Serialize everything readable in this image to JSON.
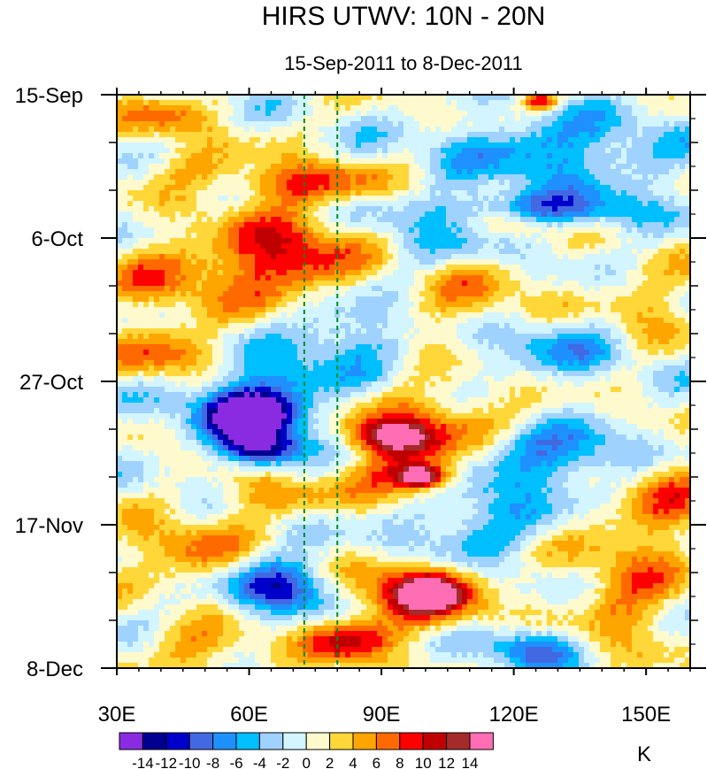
{
  "chart_data": {
    "type": "heatmap",
    "title": "HIRS UTWV: 10N - 20N",
    "subtitle": "15-Sep-2011 to 8-Dec-2011",
    "xlabel": "",
    "ylabel": "",
    "xlim": [
      30,
      160
    ],
    "x_ticks": [
      {
        "value": 30,
        "label": "30E"
      },
      {
        "value": 60,
        "label": "60E"
      },
      {
        "value": 90,
        "label": "90E"
      },
      {
        "value": 120,
        "label": "120E"
      },
      {
        "value": 150,
        "label": "150E"
      }
    ],
    "ylim_days": [
      0,
      84
    ],
    "y_ticks": [
      {
        "day": 0,
        "label": "15-Sep"
      },
      {
        "day": 21,
        "label": "6-Oct"
      },
      {
        "day": 42,
        "label": "27-Oct"
      },
      {
        "day": 63,
        "label": "17-Nov"
      },
      {
        "day": 84,
        "label": "8-Dec"
      }
    ],
    "reference_lines_lon": [
      72.5,
      80
    ],
    "colorbar": {
      "unit": "K",
      "levels": [
        -14,
        -12,
        -10,
        -8,
        -6,
        -4,
        -2,
        0,
        2,
        4,
        6,
        8,
        10,
        12,
        14
      ],
      "labels": [
        "-14",
        "-12",
        "-10",
        "-8",
        "-6",
        "-4",
        "-2",
        "0",
        "2",
        "4",
        "6",
        "8",
        "10",
        "12",
        "14"
      ],
      "colors": [
        "#8a2be2",
        "#000090",
        "#0000cd",
        "#4169e1",
        "#1e90ff",
        "#00bfff",
        "#a0d2ff",
        "#d2f5ff",
        "#fffacd",
        "#ffd739",
        "#ffa500",
        "#ff6a00",
        "#ff0000",
        "#c00000",
        "#a52a2a",
        "#ff6eb4"
      ]
    },
    "features": [
      {
        "day": 1,
        "lon": 126,
        "w": 4,
        "h": 1.2,
        "v": 10
      },
      {
        "day": 3,
        "lon": 40,
        "w": 12,
        "h": 3,
        "v": 5
      },
      {
        "day": 8,
        "lon": 130,
        "w": 26,
        "h": 5,
        "v": -7
      },
      {
        "day": 10,
        "lon": 45,
        "w": 12,
        "h": 3.5,
        "v": 4
      },
      {
        "day": 13,
        "lon": 72,
        "w": 16,
        "h": 3,
        "v": 9
      },
      {
        "day": 17,
        "lon": 127,
        "w": 22,
        "h": 3,
        "v": -9
      },
      {
        "day": 19,
        "lon": 120,
        "w": 10,
        "h": 2,
        "v": 7
      },
      {
        "day": 22,
        "lon": 100,
        "w": 18,
        "h": 6,
        "v": -3
      },
      {
        "day": 24,
        "lon": 68,
        "w": 17,
        "h": 6,
        "v": 11
      },
      {
        "day": 27,
        "lon": 40,
        "w": 14,
        "h": 6,
        "v": 5
      },
      {
        "day": 30,
        "lon": 110,
        "w": 16,
        "h": 6,
        "v": 5
      },
      {
        "day": 31,
        "lon": 150,
        "w": 10,
        "h": 6,
        "v": 4
      },
      {
        "day": 35,
        "lon": 82,
        "w": 12,
        "h": 5,
        "v": -6
      },
      {
        "day": 37,
        "lon": 128,
        "w": 18,
        "h": 5,
        "v": -5
      },
      {
        "day": 38,
        "lon": 42,
        "w": 12,
        "h": 4,
        "v": 7
      },
      {
        "day": 45,
        "lon": 62,
        "w": 16,
        "h": 6,
        "v": -10
      },
      {
        "day": 47,
        "lon": 60,
        "w": 9,
        "h": 3,
        "v": -15
      },
      {
        "day": 48,
        "lon": 104,
        "w": 20,
        "h": 5,
        "v": 7
      },
      {
        "day": 50,
        "lon": 92,
        "w": 10,
        "h": 2.4,
        "v": 11
      },
      {
        "day": 53,
        "lon": 125,
        "w": 28,
        "h": 5,
        "v": -8
      },
      {
        "day": 52,
        "lon": 63,
        "w": 8,
        "h": 2.5,
        "v": -14
      },
      {
        "day": 55,
        "lon": 98,
        "w": 14,
        "h": 4.5,
        "v": 11
      },
      {
        "day": 56,
        "lon": 99,
        "w": 5,
        "h": 1.5,
        "v": 15
      },
      {
        "day": 56,
        "lon": 155,
        "w": 10,
        "h": 6,
        "v": 6
      },
      {
        "day": 59,
        "lon": 65,
        "w": 12,
        "h": 3,
        "v": 6
      },
      {
        "day": 63,
        "lon": 110,
        "w": 16,
        "h": 6,
        "v": -6
      },
      {
        "day": 66,
        "lon": 148,
        "w": 14,
        "h": 8,
        "v": 5
      },
      {
        "day": 67,
        "lon": 45,
        "w": 14,
        "h": 5,
        "v": 6
      },
      {
        "day": 72,
        "lon": 68,
        "w": 12,
        "h": 4,
        "v": -11
      },
      {
        "day": 73,
        "lon": 98,
        "w": 16,
        "h": 5,
        "v": 11
      },
      {
        "day": 73,
        "lon": 101,
        "w": 6,
        "h": 2,
        "v": 15
      },
      {
        "day": 76,
        "lon": 145,
        "w": 12,
        "h": 5,
        "v": 5
      },
      {
        "day": 80,
        "lon": 83,
        "w": 10,
        "h": 3,
        "v": 10
      },
      {
        "day": 81,
        "lon": 124,
        "w": 10,
        "h": 3,
        "v": -9
      },
      {
        "day": 82,
        "lon": 50,
        "w": 14,
        "h": 4,
        "v": 5
      }
    ]
  }
}
